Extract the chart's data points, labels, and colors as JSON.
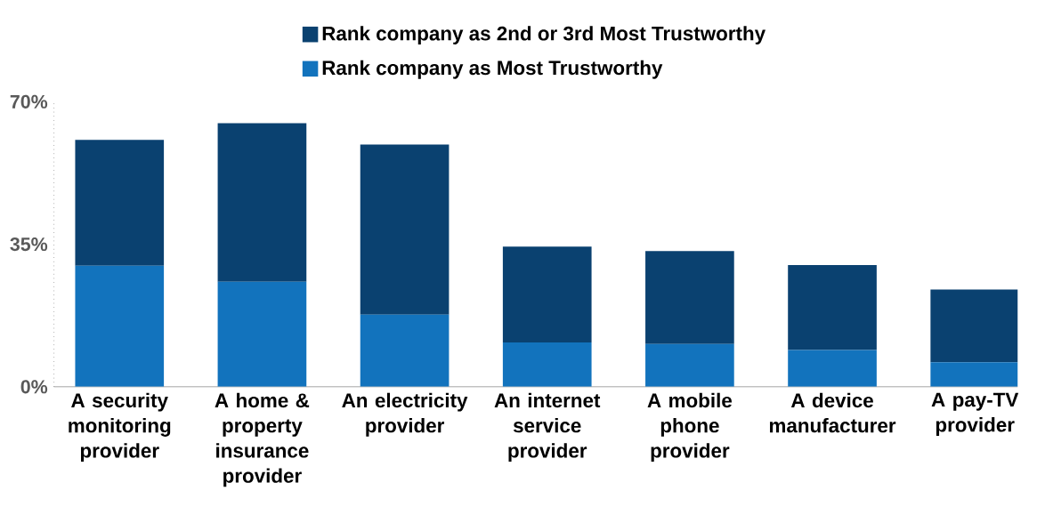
{
  "chart_data": {
    "type": "bar",
    "stacked": true,
    "categories": [
      "A security monitoring provider",
      "A home & property insurance provider",
      "An electricity provider",
      "An internet service provider",
      "A mobile phone provider",
      "A device manufacturer",
      "A pay-TV provider"
    ],
    "series": [
      {
        "name": "Rank company as Most Trustworthy",
        "color": "#1273bd",
        "values": [
          29.7,
          25.8,
          17.7,
          10.9,
          10.5,
          9.0,
          6.0
        ]
      },
      {
        "name": "Rank company as 2nd or 3rd Most Trustworthy",
        "color": "#0a4170",
        "values": [
          30.9,
          38.9,
          41.8,
          23.5,
          22.8,
          20.9,
          17.9
        ]
      }
    ],
    "ylim": [
      0,
      70
    ],
    "yticks": [
      {
        "value": 0,
        "label": "0%"
      },
      {
        "value": 35,
        "label": "35%"
      },
      {
        "value": 70,
        "label": "70%"
      }
    ],
    "legend": "top",
    "grid": false
  }
}
